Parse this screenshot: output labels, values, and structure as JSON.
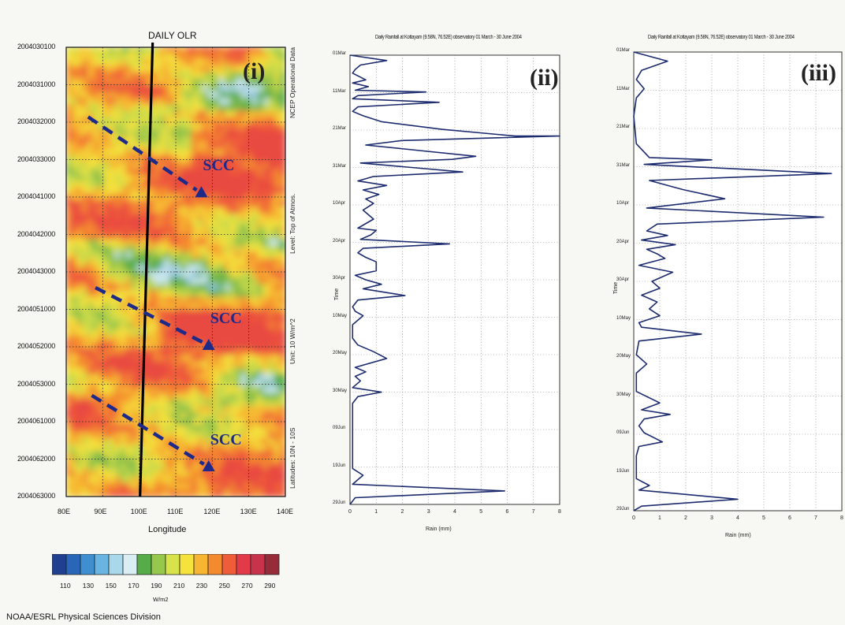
{
  "chart_data": [
    {
      "type": "heatmap",
      "title": "DAILY OLR",
      "xlabel": "Longitude",
      "x_ticks": [
        "80E",
        "90E",
        "100E",
        "110E",
        "120E",
        "130E",
        "140E"
      ],
      "xlim_deg": [
        80,
        140
      ],
      "y_ticks": [
        "2004030100",
        "2004031000",
        "2004032000",
        "2004033000",
        "2004041000",
        "2004042000",
        "2004043000",
        "2004051000",
        "2004052000",
        "2004053000",
        "2004061000",
        "2004062000",
        "2004063000"
      ],
      "side_labels": [
        "NCEP Operational Data",
        "Level: Top of Atmos.",
        "Unit: 10 W/m^2",
        "Latitudes: 10N - 10S"
      ],
      "panel_tag": "(i)",
      "colorbar": {
        "ticks": [
          "110",
          "130",
          "150",
          "170",
          "190",
          "210",
          "230",
          "250",
          "270",
          "290"
        ],
        "unit": "W/m2",
        "colors": [
          "#1f3f8f",
          "#2a66b8",
          "#3f8fd0",
          "#69b4e0",
          "#a8d8ea",
          "#d8eef3",
          "#56ac48",
          "#97c84e",
          "#d8e24a",
          "#f6e23c",
          "#f7b532",
          "#f48a2e",
          "#ef5c3a",
          "#e23a48",
          "#c8324a",
          "#962b3a"
        ]
      },
      "vertical_line_lon": 100,
      "annotations": [
        {
          "text": "SCC",
          "lon_start": 86,
          "t_start": 0.155,
          "lon_end": 117,
          "t_end": 0.325
        },
        {
          "text": "SCC",
          "lon_start": 88,
          "t_start": 0.535,
          "lon_end": 119,
          "t_end": 0.665
        },
        {
          "text": "SCC",
          "lon_start": 87,
          "t_start": 0.775,
          "lon_end": 119,
          "t_end": 0.935
        }
      ],
      "credit": "NOAA/ESRL Physical Sciences Division"
    },
    {
      "type": "line",
      "title": "Daily Rainfall at Kottayam (9.58N, 76.52E) observatory 01 March - 30 June 2004",
      "panel_tag": "(ii)",
      "xlabel": "Rain (mm)",
      "ylabel": "Time",
      "x_ticks": [
        "0",
        "1",
        "2",
        "3",
        "4",
        "5",
        "6",
        "7",
        "8"
      ],
      "y_ticks": [
        "01Mar",
        "11Mar",
        "21Mar",
        "31Mar",
        "10Apr",
        "20Apr",
        "30Apr",
        "10May",
        "20May",
        "30May",
        "09Jun",
        "19Jun",
        "29Jun"
      ],
      "xlim": [
        0,
        8
      ],
      "series": [
        {
          "points": [
            [
              0,
              0.0
            ],
            [
              1.4,
              0.012
            ],
            [
              0.4,
              0.022
            ],
            [
              0.2,
              0.032
            ],
            [
              0.1,
              0.04
            ],
            [
              0.6,
              0.055
            ],
            [
              0.1,
              0.062
            ],
            [
              0.7,
              0.07
            ],
            [
              0.2,
              0.078
            ],
            [
              2.9,
              0.082
            ],
            [
              0.3,
              0.09
            ],
            [
              0.1,
              0.097
            ],
            [
              3.4,
              0.105
            ],
            [
              0.3,
              0.115
            ],
            [
              0.1,
              0.125
            ],
            [
              0.5,
              0.135
            ],
            [
              1.2,
              0.148
            ],
            [
              3.5,
              0.165
            ],
            [
              6.3,
              0.18
            ],
            [
              8.0,
              0.18
            ],
            [
              2.0,
              0.19
            ],
            [
              0.6,
              0.2
            ],
            [
              4.8,
              0.225
            ],
            [
              3.9,
              0.232
            ],
            [
              0.4,
              0.24
            ],
            [
              4.3,
              0.26
            ],
            [
              0.9,
              0.27
            ],
            [
              0.3,
              0.28
            ],
            [
              1.4,
              0.29
            ],
            [
              0.5,
              0.3
            ],
            [
              1.1,
              0.31
            ],
            [
              0.6,
              0.32
            ],
            [
              0.9,
              0.33
            ],
            [
              0.5,
              0.345
            ],
            [
              0.9,
              0.365
            ],
            [
              0.3,
              0.385
            ],
            [
              1.0,
              0.39
            ],
            [
              0.8,
              0.4
            ],
            [
              0.4,
              0.41
            ],
            [
              3.8,
              0.42
            ],
            [
              0.5,
              0.43
            ],
            [
              0.3,
              0.44
            ],
            [
              0.6,
              0.45
            ],
            [
              1.0,
              0.46
            ],
            [
              1.0,
              0.48
            ],
            [
              0.2,
              0.49
            ],
            [
              0.6,
              0.5
            ],
            [
              1.2,
              0.51
            ],
            [
              0.5,
              0.52
            ],
            [
              2.1,
              0.535
            ],
            [
              0.3,
              0.545
            ],
            [
              0.1,
              0.56
            ],
            [
              0.2,
              0.57
            ],
            [
              0.5,
              0.58
            ],
            [
              0.1,
              0.6
            ],
            [
              0.1,
              0.63
            ],
            [
              0.3,
              0.645
            ],
            [
              0.9,
              0.66
            ],
            [
              1.4,
              0.675
            ],
            [
              0.2,
              0.695
            ],
            [
              0.6,
              0.705
            ],
            [
              0.2,
              0.715
            ],
            [
              0.4,
              0.725
            ],
            [
              0.1,
              0.74
            ],
            [
              1.2,
              0.75
            ],
            [
              0.3,
              0.76
            ],
            [
              0.1,
              0.775
            ],
            [
              0.1,
              0.83
            ],
            [
              0.1,
              0.92
            ],
            [
              0.5,
              0.935
            ],
            [
              0.3,
              0.945
            ],
            [
              0.1,
              0.955
            ],
            [
              5.9,
              0.97
            ],
            [
              0.2,
              0.985
            ],
            [
              0.0,
              1.0
            ]
          ]
        }
      ]
    },
    {
      "type": "line",
      "title": "Daily Rainfall at Kottayam (9.58N, 76.52E) observatory 01 March - 30 June 2004",
      "panel_tag": "(iii)",
      "xlabel": "Rain (mm)",
      "ylabel": "Time",
      "x_ticks": [
        "0",
        "1",
        "2",
        "3",
        "4",
        "5",
        "6",
        "7",
        "8"
      ],
      "y_ticks": [
        "01Mar",
        "11Mar",
        "21Mar",
        "31Mar",
        "10Apr",
        "20Apr",
        "30Apr",
        "10May",
        "20May",
        "30May",
        "09Jun",
        "19Jun",
        "29Jun"
      ],
      "xlim": [
        0,
        8
      ],
      "series": [
        {
          "points": [
            [
              0,
              0.0
            ],
            [
              1.3,
              0.02
            ],
            [
              0.3,
              0.04
            ],
            [
              0.1,
              0.06
            ],
            [
              0.4,
              0.08
            ],
            [
              0.1,
              0.1
            ],
            [
              0.0,
              0.14
            ],
            [
              0.1,
              0.2
            ],
            [
              0.6,
              0.23
            ],
            [
              3.0,
              0.235
            ],
            [
              0.4,
              0.245
            ],
            [
              7.6,
              0.265
            ],
            [
              0.6,
              0.28
            ],
            [
              1.9,
              0.3
            ],
            [
              3.5,
              0.32
            ],
            [
              0.5,
              0.34
            ],
            [
              7.3,
              0.36
            ],
            [
              0.9,
              0.375
            ],
            [
              0.5,
              0.39
            ],
            [
              1.3,
              0.4
            ],
            [
              0.3,
              0.41
            ],
            [
              1.6,
              0.42
            ],
            [
              0.5,
              0.43
            ],
            [
              0.9,
              0.44
            ],
            [
              1.2,
              0.45
            ],
            [
              0.2,
              0.465
            ],
            [
              1.5,
              0.48
            ],
            [
              0.7,
              0.5
            ],
            [
              1.0,
              0.515
            ],
            [
              0.3,
              0.53
            ],
            [
              0.9,
              0.545
            ],
            [
              0.6,
              0.56
            ],
            [
              1.0,
              0.575
            ],
            [
              0.2,
              0.59
            ],
            [
              0.3,
              0.6
            ],
            [
              2.6,
              0.615
            ],
            [
              0.2,
              0.63
            ],
            [
              0.1,
              0.66
            ],
            [
              0.5,
              0.68
            ],
            [
              0.1,
              0.7
            ],
            [
              0.1,
              0.74
            ],
            [
              1.0,
              0.765
            ],
            [
              0.3,
              0.78
            ],
            [
              1.4,
              0.79
            ],
            [
              0.4,
              0.8
            ],
            [
              0.2,
              0.815
            ],
            [
              0.4,
              0.83
            ],
            [
              1.1,
              0.85
            ],
            [
              0.2,
              0.86
            ],
            [
              0.1,
              0.88
            ],
            [
              0.1,
              0.93
            ],
            [
              0.6,
              0.945
            ],
            [
              0.2,
              0.955
            ],
            [
              4.0,
              0.975
            ],
            [
              0.3,
              0.99
            ],
            [
              0.0,
              1.0
            ]
          ]
        }
      ]
    }
  ]
}
